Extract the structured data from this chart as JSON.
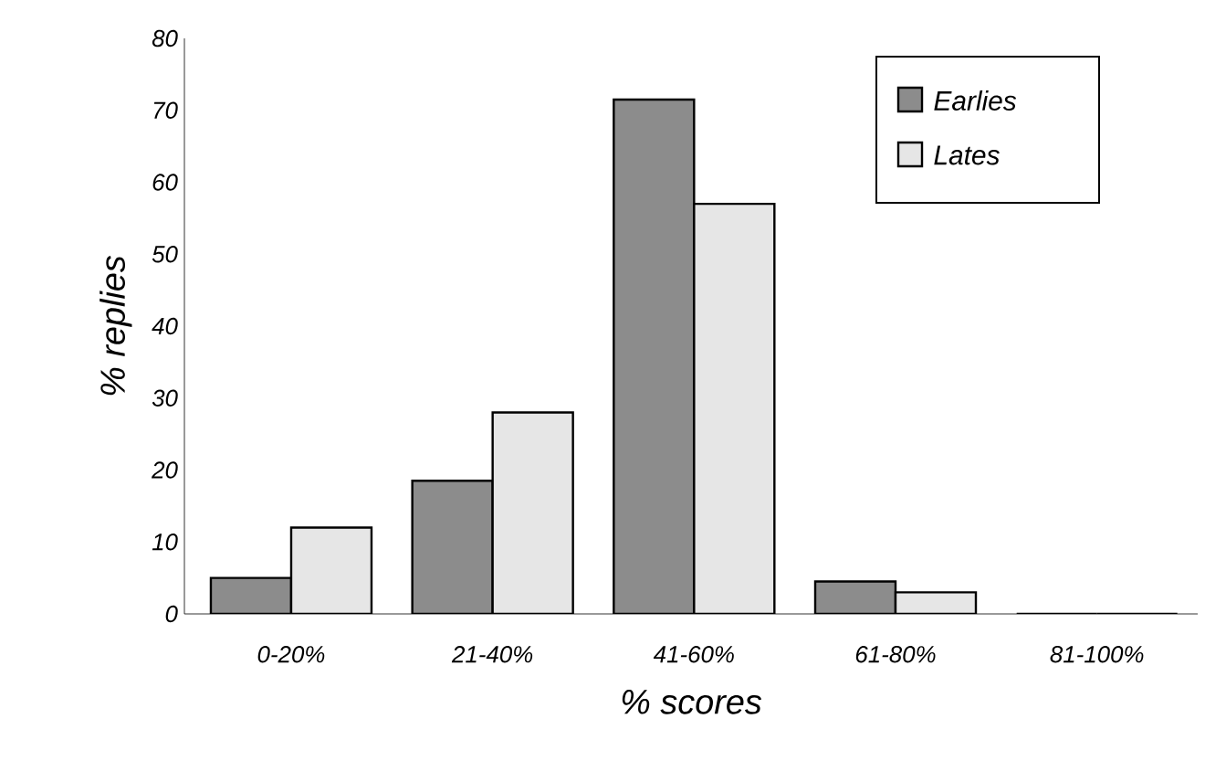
{
  "chart_data": {
    "type": "bar",
    "xlabel": "% scores",
    "ylabel": "% replies",
    "categories": [
      "0-20%",
      "21-40%",
      "41-60%",
      "61-80%",
      "81-100%"
    ],
    "series": [
      {
        "name": "Earlies",
        "color": "#8c8c8c",
        "values": [
          5,
          18.5,
          71.5,
          4.5,
          0
        ]
      },
      {
        "name": "Lates",
        "color": "#e6e6e6",
        "values": [
          12,
          28,
          57,
          3,
          0
        ]
      }
    ],
    "ylim": [
      0,
      80
    ],
    "yticks": [
      0,
      10,
      20,
      30,
      40,
      50,
      60,
      70,
      80
    ],
    "grid": false,
    "legend": "top right"
  }
}
